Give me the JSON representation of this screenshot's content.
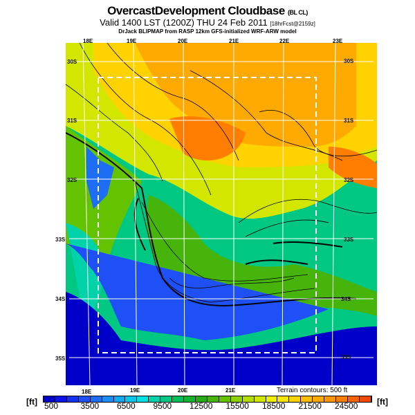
{
  "header": {
    "title": "OvercastDevelopment Cloudbase",
    "title_tag": "(BL CL)",
    "valid": "Valid 1400 LST (1200Z) THU 24 Feb 2011",
    "valid_tag": "[18hrFcst@2159z]",
    "source": "DrJack BLIPMAP from RASP 12km GFS-initialized WRF-ARW model"
  },
  "map": {
    "lon_labels_top": [
      "18E",
      "19E",
      "20E",
      "21E",
      "22E",
      "23E"
    ],
    "lon_labels_bottom": [
      "18E",
      "19E",
      "20E",
      "21E"
    ],
    "lat_labels_left": [
      "30S",
      "31S",
      "32S",
      "33S",
      "34S",
      "35S"
    ],
    "lat_labels_right": [
      "30S",
      "31S",
      "32S",
      "33S",
      "34S",
      "35S"
    ],
    "terrain_note": "Terrain contours: 500 ft"
  },
  "colorbar": {
    "unit_left": "[ft]",
    "unit_right": "[ft]",
    "labels": [
      "500",
      "3500",
      "6500",
      "9500",
      "12500",
      "15500",
      "18500",
      "21500",
      "24500"
    ],
    "colors": [
      "#0000c8",
      "#0a14e6",
      "#1432f0",
      "#1e50f5",
      "#1e6ef5",
      "#1e8cf5",
      "#14aaf0",
      "#0ac8eb",
      "#00e1e1",
      "#00d2aa",
      "#00c882",
      "#00be5a",
      "#14b432",
      "#28aa14",
      "#46b40a",
      "#64c300",
      "#8cd200",
      "#b4dc00",
      "#d2e600",
      "#f0f000",
      "#fae600",
      "#ffd200",
      "#ffbe00",
      "#ffaa00",
      "#ff9600",
      "#ff7d00",
      "#fa6400",
      "#f04b00"
    ]
  }
}
